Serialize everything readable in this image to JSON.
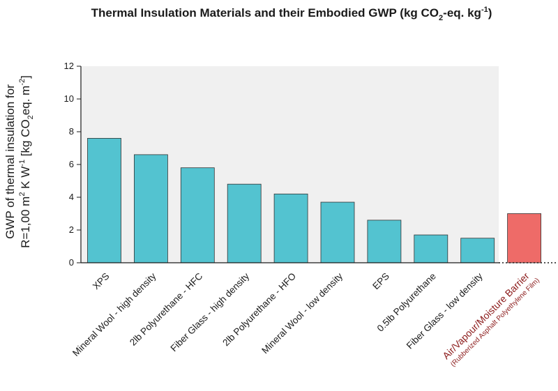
{
  "chart_data": {
    "type": "bar",
    "title": "Thermal Insulation Materials and their Embodied GWP (kg CO",
    "title_sub": "2",
    "title_mid": "-eq. kg",
    "title_sup": "-1",
    "title_end": ")",
    "ylabel_line1": "GWP of thermal insulation for",
    "ylabel_line2a": "R=1,00 m",
    "ylabel_sup1": "2",
    "ylabel_line2b": " K W",
    "ylabel_sup2": "-1",
    "ylabel_line2c": " [kg CO",
    "ylabel_sub": "2",
    "ylabel_line2d": "eq. m",
    "ylabel_sup3": "-2",
    "ylabel_line2e": "]",
    "ylim": [
      0,
      12
    ],
    "yticks": [
      "0",
      "2",
      "4",
      "6",
      "8",
      "10",
      "12"
    ],
    "categories": [
      "XPS",
      "Mineral Wool - high density",
      "2lb Polyurethane - HFC",
      "Fiber Glass - high density",
      "2lb Polyurethane - HFO",
      "Mineral Wool - low density",
      "EPS",
      "0.5lb Polyurethane",
      "Fiber Glass - low density",
      "Air/Vapour/Moisture Barrier"
    ],
    "values": [
      7.6,
      6.6,
      5.8,
      4.8,
      4.2,
      3.7,
      2.6,
      1.7,
      1.5,
      3.0
    ],
    "special_sublabel": "(Rubberized Asphalt Polyethylene Film)",
    "colors": {
      "bar": "#53c3d0",
      "bar_special": "#ee6b68",
      "plot_bg": "#f0f0f0",
      "special_label": "#8b1a1a"
    },
    "grid": false
  }
}
